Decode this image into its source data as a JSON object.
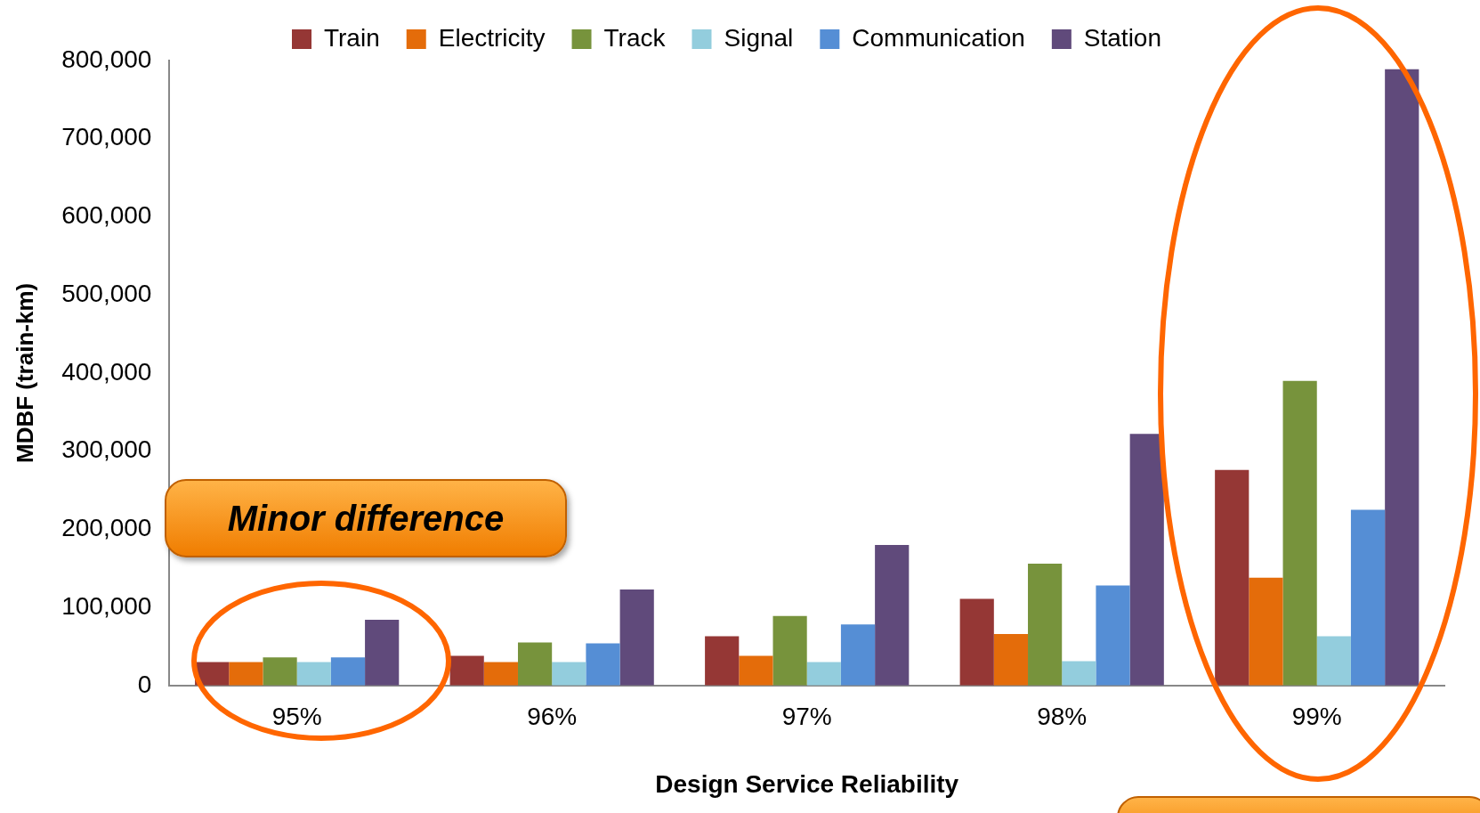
{
  "chart_data": {
    "type": "bar",
    "xlabel": "Design Service Reliability",
    "ylabel": "MDBF (train-km)",
    "categories": [
      "95%",
      "96%",
      "97%",
      "98%",
      "99%"
    ],
    "series": [
      {
        "name": "Train",
        "color": "#953735",
        "values": [
          30000,
          38000,
          63000,
          111000,
          276000
        ]
      },
      {
        "name": "Electricity",
        "color": "#e46c0a",
        "values": [
          30000,
          30000,
          38000,
          66000,
          138000
        ]
      },
      {
        "name": "Track",
        "color": "#77933c",
        "values": [
          36000,
          55000,
          89000,
          156000,
          390000
        ]
      },
      {
        "name": "Signal",
        "color": "#93cddd",
        "values": [
          30000,
          30000,
          30000,
          31000,
          63000
        ]
      },
      {
        "name": "Communication",
        "color": "#558ed5",
        "values": [
          36000,
          54000,
          78000,
          128000,
          225000
        ]
      },
      {
        "name": "Station",
        "color": "#604a7b",
        "values": [
          84000,
          123000,
          180000,
          322000,
          789000
        ]
      }
    ],
    "ylim": [
      0,
      800000
    ],
    "yticks": [
      0,
      {
        "value": 100000,
        "label": "100,000"
      },
      {
        "value": 200000,
        "label": "200,000"
      },
      {
        "value": 300000,
        "label": "300,000"
      },
      {
        "value": 400000,
        "label": "400,000"
      },
      {
        "value": 500000,
        "label": "500,000"
      },
      {
        "value": 600000,
        "label": "600,000"
      },
      {
        "value": 700000,
        "label": "700,000"
      },
      {
        "value": 800000,
        "label": "800,000"
      }
    ],
    "grid": false,
    "legend": "top",
    "annotations": [
      "Minor difference"
    ]
  }
}
